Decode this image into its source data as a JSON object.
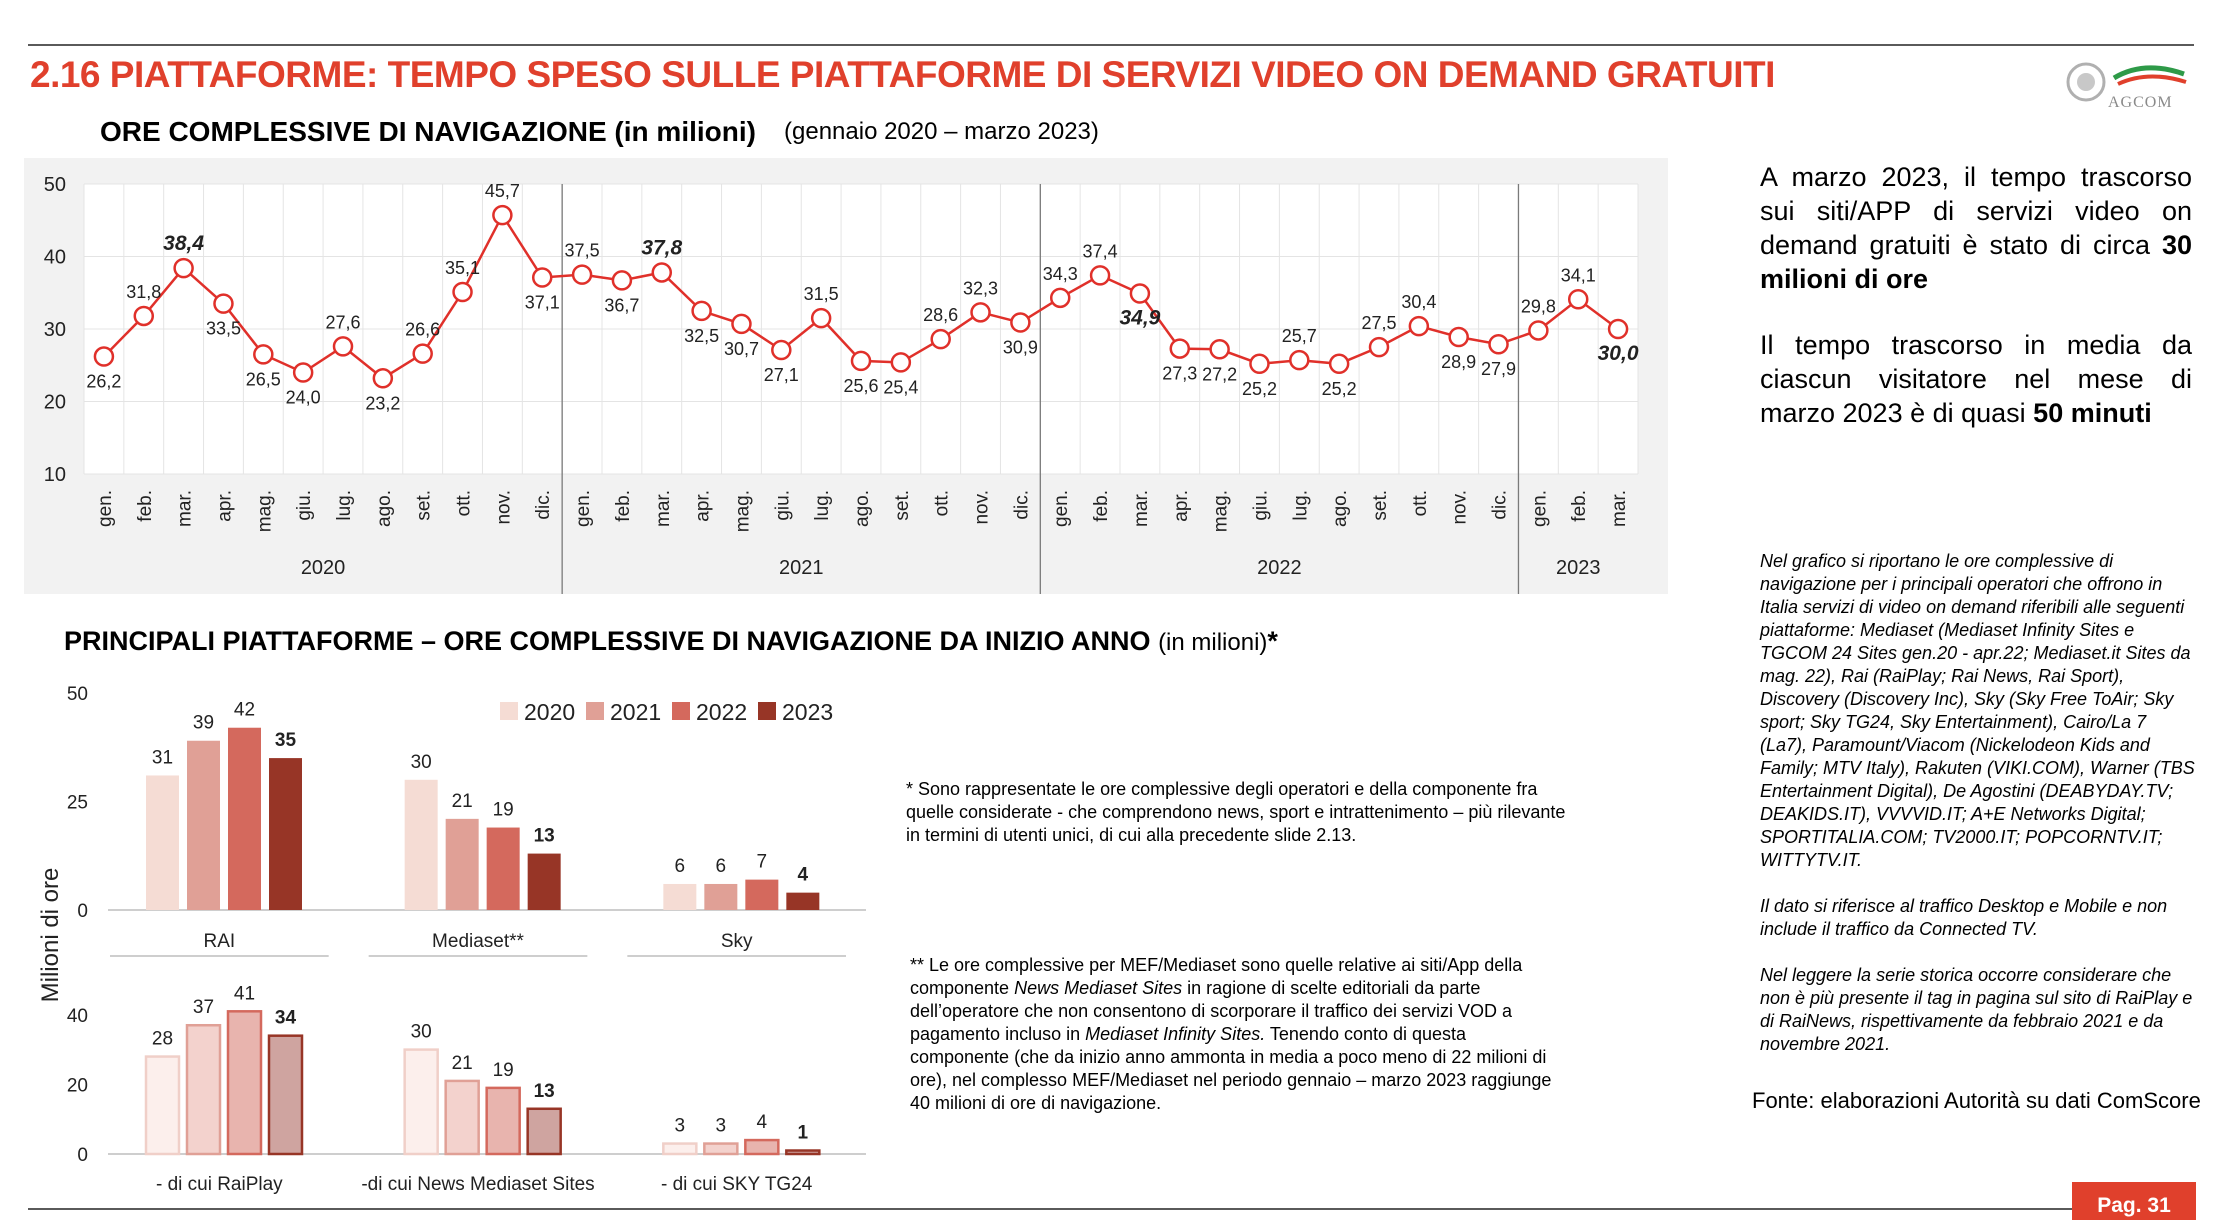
{
  "header": {
    "title": "2.16 PIATTAFORME: TEMPO SPESO SULLE PIATTAFORME DI SERVIZI VIDEO ON DEMAND GRATUITI",
    "logo_text": "AGCOM"
  },
  "section1": {
    "title": "ORE COMPLESSIVE DI NAVIGAZIONE (in milioni)",
    "range": "(gennaio 2020 – marzo 2023)"
  },
  "section2": {
    "title_main": "PRINCIPALI PIATTAFORME – ORE COMPLESSIVE DI NAVIGAZIONE DA INIZIO ANNO ",
    "title_unit": "(in milioni)",
    "title_star": "*"
  },
  "chart_data": [
    {
      "type": "line",
      "title": "ORE COMPLESSIVE DI NAVIGAZIONE (in milioni)",
      "ylim": [
        10,
        50
      ],
      "yticks": [
        "10",
        "20",
        "30",
        "40",
        "50"
      ],
      "grid": true,
      "months": [
        "gen.",
        "feb.",
        "mar.",
        "apr.",
        "mag.",
        "giu.",
        "lug.",
        "ago.",
        "set.",
        "ott.",
        "nov.",
        "dic.",
        "gen.",
        "feb.",
        "mar.",
        "apr.",
        "mag.",
        "giu.",
        "lug.",
        "ago.",
        "set.",
        "ott.",
        "nov.",
        "dic.",
        "gen.",
        "feb.",
        "mar.",
        "apr.",
        "mag.",
        "giu.",
        "lug.",
        "ago.",
        "set.",
        "ott.",
        "nov.",
        "dic.",
        "gen.",
        "feb.",
        "mar."
      ],
      "years": [
        {
          "label": "2020",
          "count": 12
        },
        {
          "label": "2021",
          "count": 12
        },
        {
          "label": "2022",
          "count": 12
        },
        {
          "label": "2023",
          "count": 3
        }
      ],
      "values": [
        26.2,
        31.8,
        38.4,
        33.5,
        26.5,
        24.0,
        27.6,
        23.2,
        26.6,
        35.1,
        45.7,
        37.1,
        37.5,
        36.7,
        37.8,
        32.5,
        30.7,
        27.1,
        31.5,
        25.6,
        25.4,
        28.6,
        32.3,
        30.9,
        34.3,
        37.4,
        34.9,
        27.3,
        27.2,
        25.2,
        25.7,
        25.2,
        27.5,
        30.4,
        28.9,
        27.9,
        29.8,
        34.1,
        30.0
      ],
      "labels": [
        "26,2",
        "31,8",
        "38,4",
        "33,5",
        "26,5",
        "24,0",
        "27,6",
        "23,2",
        "26,6",
        "35,1",
        "45,7",
        "37,1",
        "37,5",
        "36,7",
        "37,8",
        "32,5",
        "30,7",
        "27,1",
        "31,5",
        "25,6",
        "25,4",
        "28,6",
        "32,3",
        "30,9",
        "34,3",
        "37,4",
        "34,9",
        "27,3",
        "27,2",
        "25,2",
        "25,7",
        "25,2",
        "27,5",
        "30,4",
        "28,9",
        "27,9",
        "29,8",
        "34,1",
        "30,0"
      ],
      "bold_labels": [
        "38,4",
        "37,8",
        "34,9",
        "30,0"
      ],
      "color": "#e0302a"
    },
    {
      "type": "bar",
      "ylabel": "Milioni di ore",
      "legend": {
        "position": "top",
        "entries": [
          "2020",
          "2021",
          "2022",
          "2023"
        ]
      },
      "colors": [
        "#f5dcd4",
        "#e0a096",
        "#d4695d",
        "#973526"
      ],
      "panels": [
        {
          "ylim": [
            0,
            50
          ],
          "yticks": [
            "0",
            "25",
            "50"
          ],
          "categories": [
            "RAI",
            "Mediaset**",
            "Sky"
          ],
          "values": [
            [
              31,
              39,
              42,
              35
            ],
            [
              30,
              21,
              19,
              13
            ],
            [
              6,
              6,
              7,
              4
            ]
          ]
        },
        {
          "ylim": [
            0,
            50
          ],
          "yticks": [
            "0",
            "20",
            "40"
          ],
          "categories": [
            "- di cui RaiPlay",
            "-di cui News Mediaset Sites",
            "- di cui SKY TG24"
          ],
          "values": [
            [
              28,
              37,
              41,
              34
            ],
            [
              30,
              21,
              19,
              13
            ],
            [
              3,
              3,
              4,
              1
            ]
          ],
          "colors": [
            "#fcefec",
            "#f3d2cd",
            "#e8b4ae",
            "#cfa4a0"
          ],
          "strokes": [
            "#f0cfc8",
            "#e0a096",
            "#d4695d",
            "#973526"
          ]
        }
      ]
    }
  ],
  "notes": {
    "note1": "* Sono rappresentate le ore complessive degli operatori e della componente fra quelle considerate - che comprendono news, sport e intrattenimento – più rilevante in termini di utenti unici, di cui alla precedente slide 2.13.",
    "note2_a": "** Le ore complessive per MEF/Mediaset sono quelle relative ai siti/App della componente ",
    "note2_b": "News Mediaset Sites",
    "note2_c": " in ragione di scelte editoriali da parte dell’operatore che non consentono di scorporare il traffico dei servizi VOD a pagamento incluso in ",
    "note2_d": "Mediaset Infinity Sites.",
    "note2_e": " Tenendo conto di questa componente (che da inizio anno ammonta in media a poco meno di 22 milioni di ore), nel complesso MEF/Mediaset nel periodo gennaio – marzo 2023 raggiunge 40 milioni di ore di navigazione."
  },
  "side": {
    "p1_a": "A marzo 2023, il tempo trascorso sui siti/APP di servizi video on demand gratuiti è stato di circa ",
    "p1_b": "30 milioni di ore",
    "p2_a": "Il tempo trascorso in media da ciascun visitatore nel mese di marzo 2023 è di quasi ",
    "p2_b": "50 minuti",
    "note_p1": "Nel grafico si riportano le ore complessive di navigazione per i principali operatori che offrono in Italia servizi di video on demand riferibili alle seguenti piattaforme: Mediaset (Mediaset Infinity Sites e TGCOM 24 Sites gen.20 - apr.22; Mediaset.it Sites da mag. 22), Rai (RaiPlay; Rai News, Rai Sport), Discovery (Discovery Inc), Sky (Sky Free ToAir; Sky sport; Sky TG24, Sky Entertainment), Cairo/La 7 (La7), Paramount/Viacom (Nickelodeon Kids and Family; MTV Italy), Rakuten (VIKI.COM), Warner (TBS Entertainment Digital), De Agostini (DEABYDAY.TV; DEAKIDS.IT), VVVVID.IT; A+E Networks Digital; SPORTITALIA.COM; TV2000.IT; POPCORNTV.IT; WITTYTV.IT.",
    "note_p2": "Il dato si riferisce al traffico Desktop e Mobile e non include il traffico da Connected TV.",
    "note_p3": "Nel leggere la serie storica occorre considerare che non è più presente il tag in pagina sul sito di RaiPlay e di RaiNews, rispettivamente da febbraio 2021 e da novembre 2021.",
    "source": "Fonte: elaborazioni Autorità su dati ComScore"
  },
  "footer": {
    "page": "Pag. 31"
  }
}
